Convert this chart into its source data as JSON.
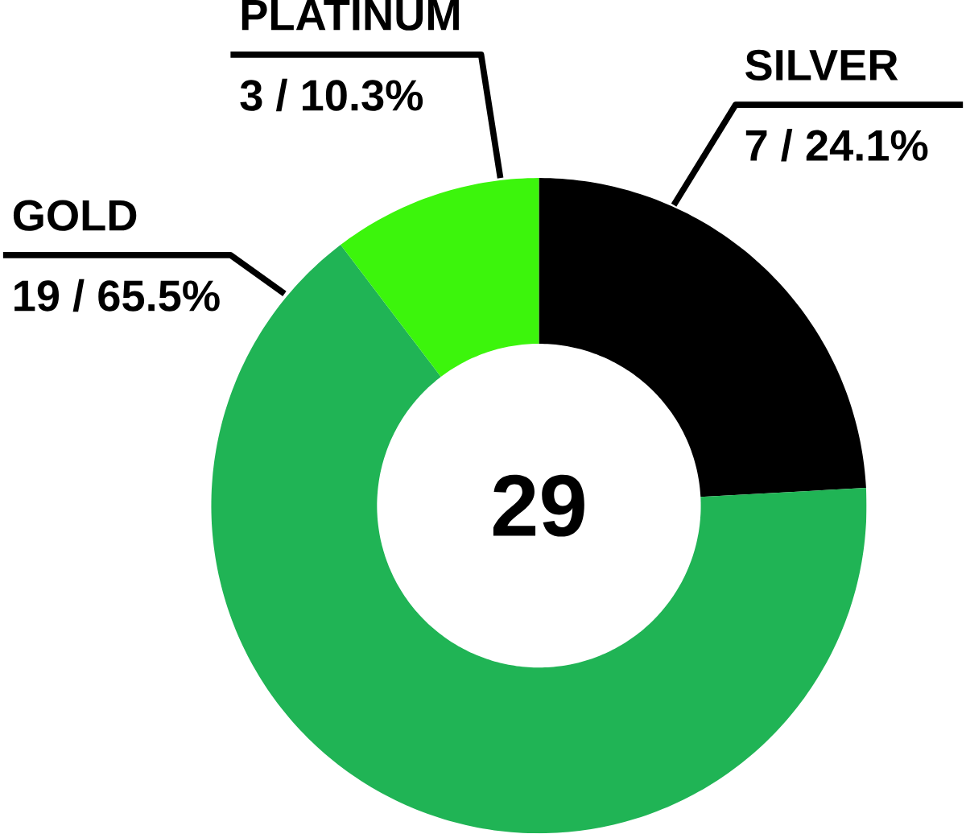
{
  "chart_data": {
    "type": "donut",
    "categories": [
      "SILVER",
      "GOLD",
      "PLATINUM"
    ],
    "values": [
      7,
      19,
      3
    ],
    "colors": [
      "#000000",
      "#20b455",
      "#3cf50c"
    ],
    "value_labels": [
      "7 / 24.1%",
      "19 / 65.5%",
      "3 / 10.3%"
    ],
    "annotations": [
      "29"
    ]
  }
}
